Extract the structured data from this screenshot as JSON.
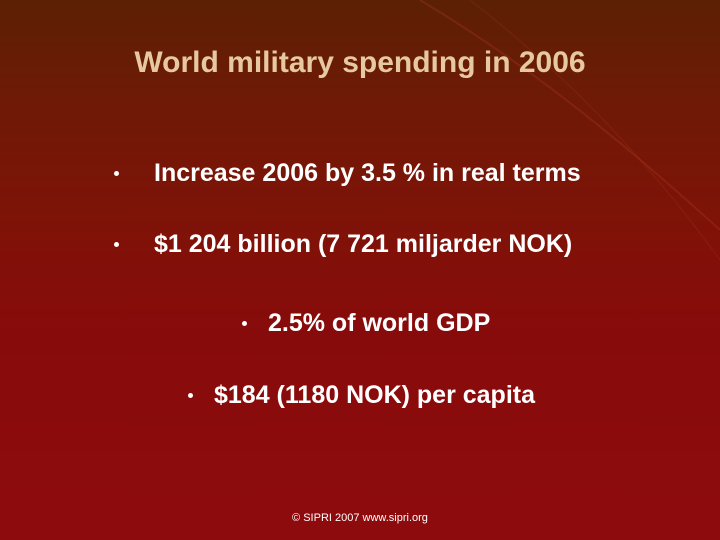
{
  "slide": {
    "title": "World military spending in 2006",
    "bullets": [
      {
        "text": "Increase 2006 by 3.5 % in real terms"
      },
      {
        "text": "$1 204 billion (7 721 miljarder NOK)"
      },
      {
        "text": "2.5% of world GDP"
      },
      {
        "text": "$184 (1180 NOK) per capita"
      }
    ],
    "footer": "©  SIPRI 2007  www.sipri.org"
  },
  "colors": {
    "title": "#e7c9a0",
    "body_text": "#ffffff",
    "background_top": "#5c2004",
    "background_bottom": "#8e0b0d"
  }
}
